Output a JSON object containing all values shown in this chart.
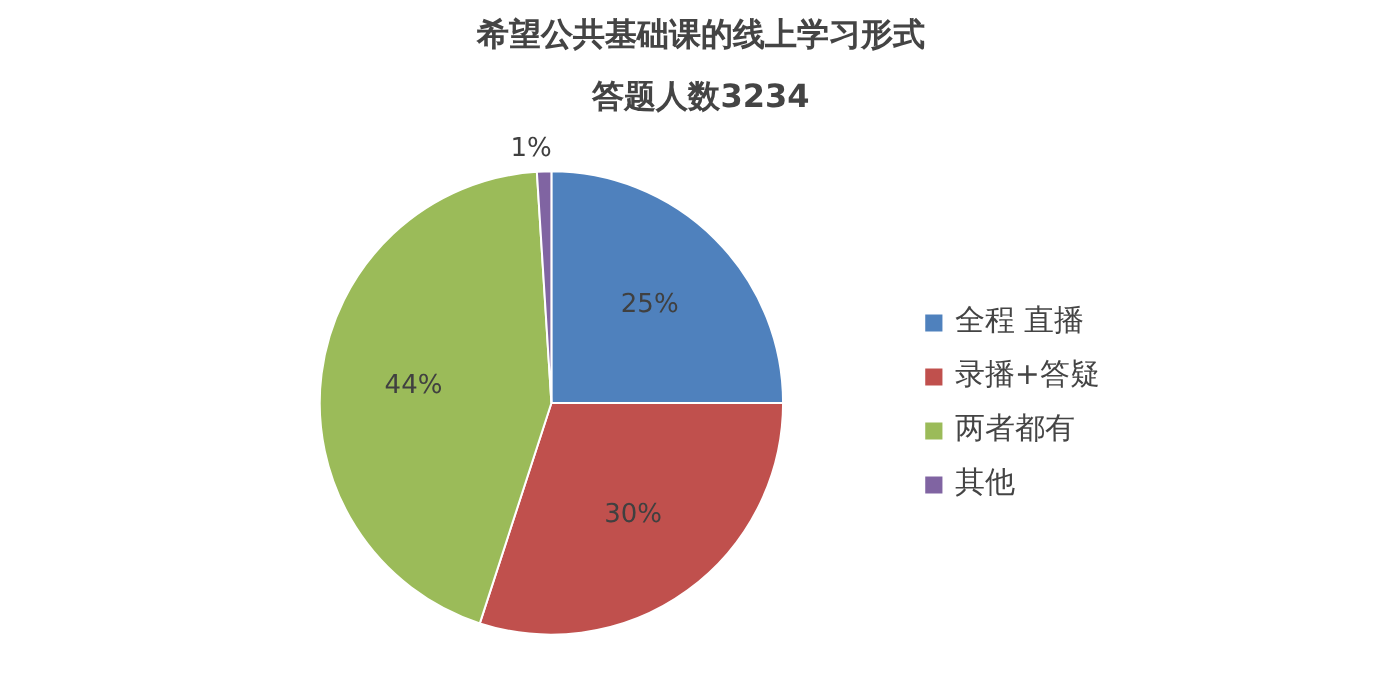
{
  "chart_data": {
    "type": "pie",
    "title": "希望公共基础课的线上学习形式",
    "subtitle": "答题人数3234",
    "categories": [
      "全程 直播",
      "录播+答疑",
      "两者都有",
      "其他"
    ],
    "values": [
      25,
      30,
      44,
      1
    ],
    "colors": [
      "#4f81bd",
      "#c0504d",
      "#9bbb59",
      "#8064a2"
    ],
    "value_labels": [
      "25%",
      "30%",
      "44%",
      "1%"
    ],
    "legend": "right"
  }
}
